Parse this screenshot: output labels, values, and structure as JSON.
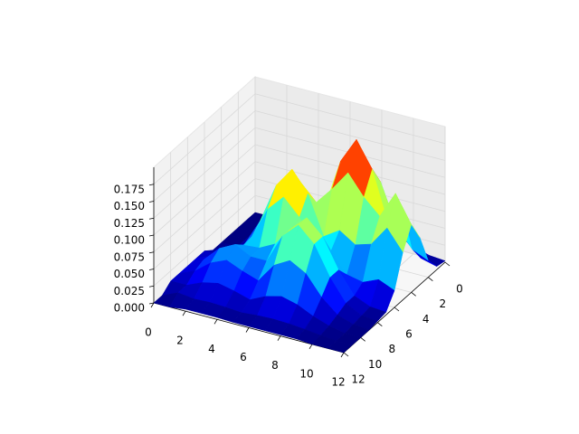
{
  "chart_data": {
    "type": "surface",
    "colormap": "jet",
    "x": [
      0,
      1,
      2,
      3,
      4,
      5,
      6,
      7,
      8,
      9,
      10,
      11,
      12
    ],
    "y": [
      0,
      1,
      2,
      3,
      4,
      5,
      6,
      7,
      8,
      9,
      10,
      11,
      12
    ],
    "z": [
      [
        0,
        0,
        0,
        0,
        0,
        0,
        0.01,
        0.01,
        0.01,
        0.01,
        0.01,
        0,
        0
      ],
      [
        0,
        0,
        0,
        0,
        0,
        0.01,
        0.01,
        0.02,
        0.025,
        0.02,
        0.01,
        0.01,
        0
      ],
      [
        0,
        0,
        0.005,
        0.01,
        0.016,
        0.021,
        0.02,
        0.038,
        0.048,
        0.038,
        0.02,
        0.007,
        0.003
      ],
      [
        0.002,
        0.004,
        0.009,
        0.026,
        0.05,
        0.062,
        0.05,
        0.048,
        0.06,
        0.048,
        0.025,
        0.008,
        0.003
      ],
      [
        0.002,
        0.004,
        0.017,
        0.05,
        0.096,
        0.12,
        0.096,
        0.05,
        0.048,
        0.038,
        0.02,
        0.007,
        0.003
      ],
      [
        0.004,
        0.011,
        0.021,
        0.062,
        0.12,
        0.15,
        0.12,
        0.062,
        0.048,
        0.03,
        0.013,
        0.005,
        0.002
      ],
      [
        0.011,
        0.032,
        0.063,
        0.078,
        0.096,
        0.12,
        0.096,
        0.091,
        0.091,
        0.059,
        0.024,
        0.007,
        0.002
      ],
      [
        0.021,
        0.063,
        0.122,
        0.152,
        0.122,
        0.063,
        0.072,
        0.113,
        0.113,
        0.072,
        0.03,
        0.008,
        0.002
      ],
      [
        0.026,
        0.078,
        0.152,
        0.19,
        0.152,
        0.078,
        0.059,
        0.091,
        0.091,
        0.059,
        0.024,
        0.007,
        0.002
      ],
      [
        0.021,
        0.063,
        0.122,
        0.152,
        0.122,
        0.063,
        0.03,
        0.048,
        0.048,
        0.03,
        0.013,
        0.005,
        0.002
      ],
      [
        0.011,
        0.032,
        0.063,
        0.078,
        0.1,
        0.07,
        0.025,
        0.016,
        0.016,
        0.01,
        0.005,
        0.002,
        0
      ],
      [
        0.004,
        0.011,
        0.035,
        0.1,
        0.14,
        0.1,
        0.035,
        0.006,
        0.004,
        0.002,
        0,
        0,
        0
      ],
      [
        0.002,
        0.005,
        0.025,
        0.07,
        0.1,
        0.07,
        0.025,
        0.004,
        0.002,
        0,
        0,
        0,
        0
      ]
    ],
    "xlim": [
      0,
      12
    ],
    "ylim": [
      0,
      12
    ],
    "zlim": [
      0,
      0.2
    ],
    "xticks": [
      0,
      2,
      4,
      6,
      8,
      10,
      12
    ],
    "yticks": [
      0,
      2,
      4,
      6,
      8,
      10,
      12
    ],
    "zticks": [
      {
        "value": 0,
        "label": "0.000"
      },
      {
        "value": 0.025,
        "label": "0.025"
      },
      {
        "value": 0.05,
        "label": "0.050"
      },
      {
        "value": 0.075,
        "label": "0.075"
      },
      {
        "value": 0.1,
        "label": "0.100"
      },
      {
        "value": 0.125,
        "label": "0.125"
      },
      {
        "value": 0.15,
        "label": "0.150"
      },
      {
        "value": 0.175,
        "label": "0.175"
      }
    ],
    "grid": true
  }
}
